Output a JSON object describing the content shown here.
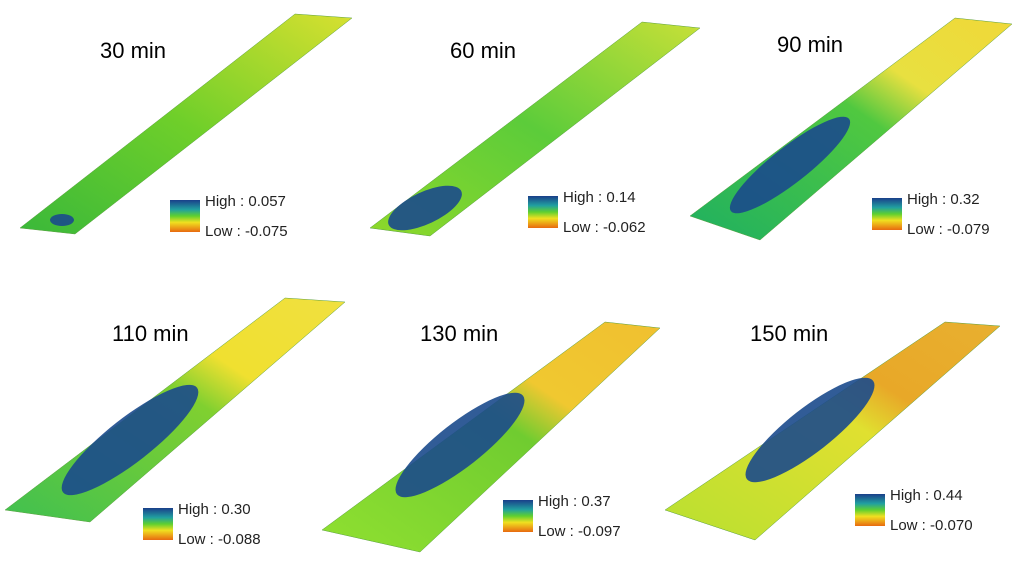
{
  "panels": [
    {
      "title": "30 min",
      "high": "High : 0.057",
      "low": "Low : -0.075"
    },
    {
      "title": "60 min",
      "high": "High : 0.14",
      "low": "Low : -0.062"
    },
    {
      "title": "90 min",
      "high": "High : 0.32",
      "low": "Low : -0.079"
    },
    {
      "title": "110 min",
      "high": "High : 0.30",
      "low": "Low : -0.088"
    },
    {
      "title": "130 min",
      "high": "High : 0.37",
      "low": "Low : -0.097"
    },
    {
      "title": "150 min",
      "high": "High : 0.44",
      "low": "Low : -0.070"
    }
  ]
}
